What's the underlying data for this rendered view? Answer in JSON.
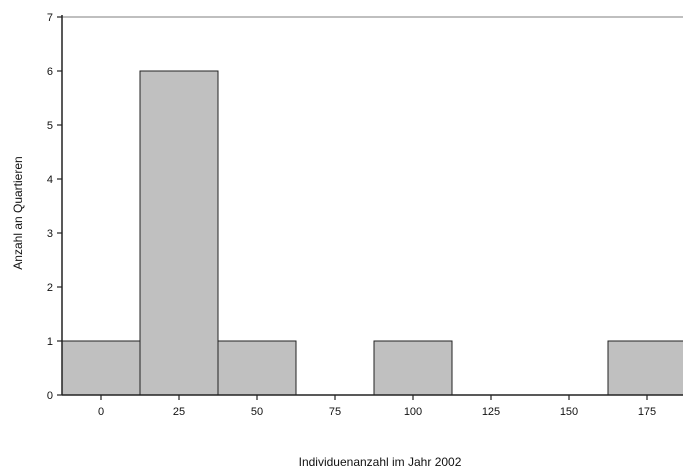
{
  "chart_data": {
    "type": "bar",
    "title": "",
    "xlabel": "Individuenanzahl im Jahr 2002",
    "ylabel": "Anzahl an Quartieren",
    "categories": [
      "0",
      "25",
      "50",
      "75",
      "100",
      "125",
      "150",
      "175"
    ],
    "values": [
      1,
      6,
      1,
      0,
      1,
      0,
      0,
      1
    ],
    "y_ticks": [
      "0",
      "1",
      "2",
      "3",
      "4",
      "5",
      "6",
      "7"
    ],
    "ylim": [
      0,
      7
    ],
    "grid": false,
    "bar_color": "#c0c0c0",
    "bar_edge_color": "#222222",
    "axis_color": "#222222",
    "top_line_color": "#aaaaaa"
  }
}
